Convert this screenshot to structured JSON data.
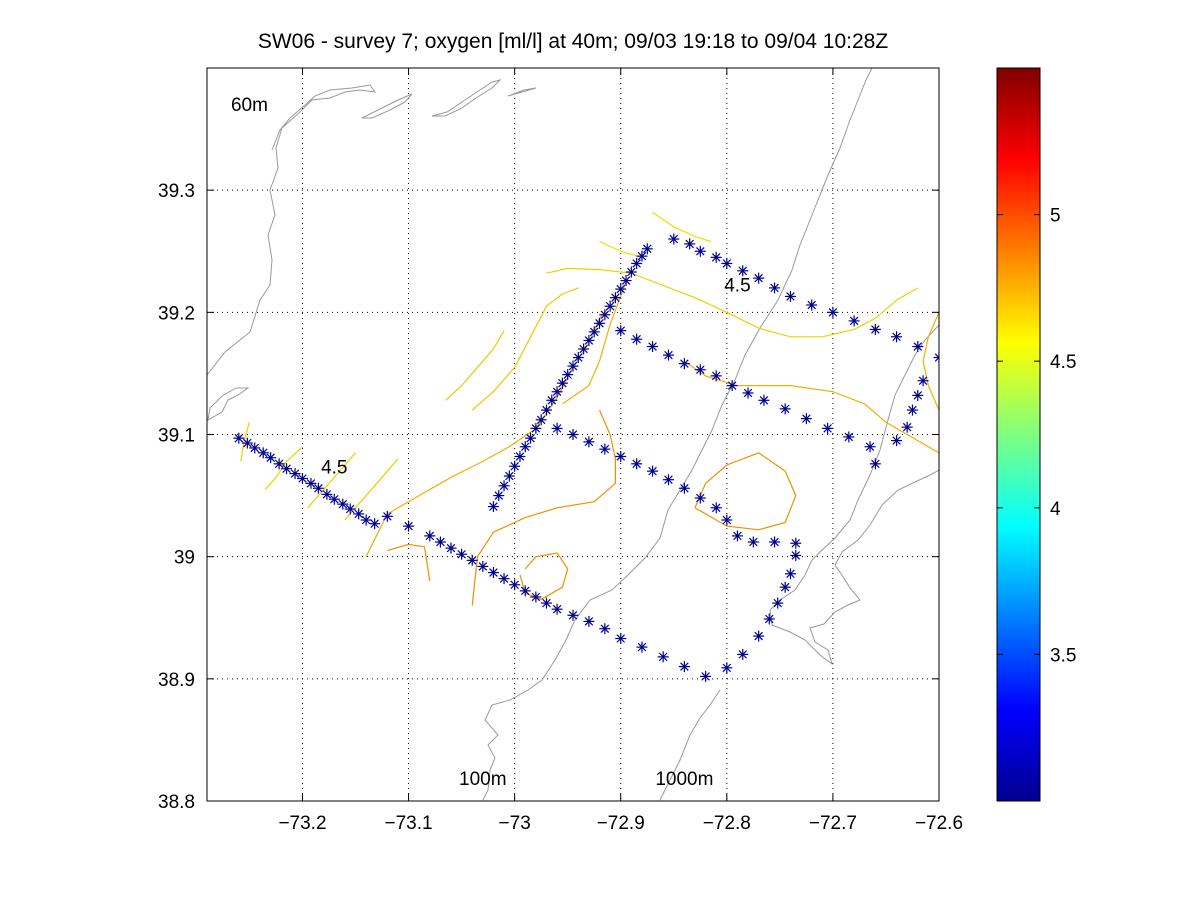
{
  "chart_data": {
    "type": "scatter",
    "title": "SW06 - survey 7; oxygen [ml/l] at 40m; 09/03 19:18 to 09/04 10:28Z",
    "xlabel": "",
    "ylabel": "",
    "xlim": [
      -73.29,
      -72.6
    ],
    "ylim": [
      38.8,
      39.4
    ],
    "xticks": [
      -73.2,
      -73.1,
      -73.0,
      -72.9,
      -72.8,
      -72.7,
      -72.6
    ],
    "xtick_labels": [
      "−73.2",
      "−73.1",
      "−73",
      "−72.9",
      "−72.8",
      "−72.7",
      "−72.6"
    ],
    "yticks": [
      38.8,
      38.9,
      39.0,
      39.1,
      39.2,
      39.3
    ],
    "ytick_labels": [
      "38.8",
      "38.9",
      "39",
      "39.1",
      "39.2",
      "39.3"
    ],
    "grid": true,
    "marker_color": "#00008f",
    "colorbar": {
      "range": [
        3.0,
        5.5
      ],
      "ticks": [
        3.5,
        4.0,
        4.5,
        5.0
      ],
      "tick_labels": [
        "3.5",
        "4",
        "4.5",
        "5"
      ],
      "colormap": "jet"
    },
    "annotations": [
      {
        "text": "60m",
        "x": -73.25,
        "y": 39.365
      },
      {
        "text": "100m",
        "x": -73.03,
        "y": 38.813
      },
      {
        "text": "1000m",
        "x": -72.84,
        "y": 38.813
      },
      {
        "text": "4.5",
        "x": -72.79,
        "y": 39.217
      },
      {
        "text": "4.5",
        "x": -73.17,
        "y": 39.068
      }
    ],
    "stations": [
      [
        -73.26,
        39.097
      ],
      [
        -73.252,
        39.093
      ],
      [
        -73.245,
        39.089
      ],
      [
        -73.237,
        39.085
      ],
      [
        -73.23,
        39.081
      ],
      [
        -73.222,
        39.076
      ],
      [
        -73.215,
        39.072
      ],
      [
        -73.207,
        39.068
      ],
      [
        -73.2,
        39.064
      ],
      [
        -73.192,
        39.06
      ],
      [
        -73.185,
        39.056
      ],
      [
        -73.177,
        39.051
      ],
      [
        -73.17,
        39.047
      ],
      [
        -73.162,
        39.043
      ],
      [
        -73.155,
        39.039
      ],
      [
        -73.147,
        39.035
      ],
      [
        -73.14,
        39.03
      ],
      [
        -73.132,
        39.027
      ],
      [
        -73.12,
        39.033
      ],
      [
        -73.1,
        39.025
      ],
      [
        -73.08,
        39.017
      ],
      [
        -73.07,
        39.012
      ],
      [
        -73.06,
        39.007
      ],
      [
        -73.05,
        39.002
      ],
      [
        -73.04,
        38.997
      ],
      [
        -73.03,
        38.992
      ],
      [
        -73.02,
        38.987
      ],
      [
        -73.01,
        38.982
      ],
      [
        -73.0,
        38.977
      ],
      [
        -72.99,
        38.972
      ],
      [
        -72.98,
        38.967
      ],
      [
        -72.97,
        38.962
      ],
      [
        -72.96,
        38.957
      ],
      [
        -72.945,
        38.952
      ],
      [
        -72.93,
        38.947
      ],
      [
        -72.915,
        38.941
      ],
      [
        -72.9,
        38.933
      ],
      [
        -72.88,
        38.926
      ],
      [
        -72.86,
        38.918
      ],
      [
        -72.84,
        38.91
      ],
      [
        -72.82,
        38.902
      ],
      [
        -72.8,
        38.909
      ],
      [
        -72.785,
        38.92
      ],
      [
        -72.77,
        38.935
      ],
      [
        -72.76,
        38.949
      ],
      [
        -72.752,
        38.962
      ],
      [
        -72.745,
        38.975
      ],
      [
        -72.74,
        38.986
      ],
      [
        -72.735,
        39.001
      ],
      [
        -73.02,
        39.041
      ],
      [
        -73.015,
        39.05
      ],
      [
        -73.01,
        39.058
      ],
      [
        -73.005,
        39.066
      ],
      [
        -73.0,
        39.074
      ],
      [
        -72.995,
        39.082
      ],
      [
        -72.99,
        39.09
      ],
      [
        -72.985,
        39.097
      ],
      [
        -72.98,
        39.105
      ],
      [
        -72.975,
        39.112
      ],
      [
        -72.97,
        39.12
      ],
      [
        -72.965,
        39.128
      ],
      [
        -72.96,
        39.135
      ],
      [
        -72.955,
        39.142
      ],
      [
        -72.95,
        39.149
      ],
      [
        -72.945,
        39.156
      ],
      [
        -72.94,
        39.163
      ],
      [
        -72.935,
        39.17
      ],
      [
        -72.93,
        39.177
      ],
      [
        -72.925,
        39.184
      ],
      [
        -72.92,
        39.191
      ],
      [
        -72.915,
        39.198
      ],
      [
        -72.91,
        39.205
      ],
      [
        -72.905,
        39.212
      ],
      [
        -72.9,
        39.219
      ],
      [
        -72.895,
        39.226
      ],
      [
        -72.89,
        39.233
      ],
      [
        -72.885,
        39.24
      ],
      [
        -72.88,
        39.246
      ],
      [
        -72.875,
        39.252
      ],
      [
        -72.85,
        39.26
      ],
      [
        -72.835,
        39.256
      ],
      [
        -72.825,
        39.25
      ],
      [
        -72.81,
        39.245
      ],
      [
        -72.8,
        39.24
      ],
      [
        -72.785,
        39.234
      ],
      [
        -72.77,
        39.228
      ],
      [
        -72.755,
        39.22
      ],
      [
        -72.74,
        39.213
      ],
      [
        -72.72,
        39.206
      ],
      [
        -72.7,
        39.2
      ],
      [
        -72.68,
        39.193
      ],
      [
        -72.66,
        39.186
      ],
      [
        -72.64,
        39.18
      ],
      [
        -72.62,
        39.172
      ],
      [
        -72.6,
        39.163
      ],
      [
        -72.615,
        39.144
      ],
      [
        -72.62,
        39.132
      ],
      [
        -72.625,
        39.12
      ],
      [
        -72.63,
        39.106
      ],
      [
        -72.64,
        39.095
      ],
      [
        -72.66,
        39.076
      ],
      [
        -72.9,
        39.185
      ],
      [
        -72.885,
        39.178
      ],
      [
        -72.87,
        39.172
      ],
      [
        -72.855,
        39.165
      ],
      [
        -72.84,
        39.158
      ],
      [
        -72.825,
        39.153
      ],
      [
        -72.81,
        39.148
      ],
      [
        -72.795,
        39.14
      ],
      [
        -72.78,
        39.134
      ],
      [
        -72.765,
        39.128
      ],
      [
        -72.745,
        39.121
      ],
      [
        -72.725,
        39.113
      ],
      [
        -72.705,
        39.105
      ],
      [
        -72.685,
        39.098
      ],
      [
        -72.665,
        39.09
      ],
      [
        -72.96,
        39.105
      ],
      [
        -72.945,
        39.1
      ],
      [
        -72.93,
        39.094
      ],
      [
        -72.915,
        39.088
      ],
      [
        -72.9,
        39.082
      ],
      [
        -72.885,
        39.076
      ],
      [
        -72.87,
        39.07
      ],
      [
        -72.855,
        39.063
      ],
      [
        -72.84,
        39.056
      ],
      [
        -72.825,
        39.048
      ],
      [
        -72.81,
        39.04
      ],
      [
        -72.8,
        39.03
      ],
      [
        -72.79,
        39.017
      ],
      [
        -72.775,
        39.012
      ],
      [
        -72.755,
        39.012
      ],
      [
        -72.735,
        39.011
      ]
    ],
    "contours": [
      {
        "level": 4.5,
        "color": "#f0e000",
        "points": [
          [
            -72.87,
            39.282
          ],
          [
            -72.85,
            39.27
          ],
          [
            -72.83,
            39.262
          ],
          [
            -72.815,
            39.258
          ]
        ]
      },
      {
        "level": 4.5,
        "color": "#f0e000",
        "points": [
          [
            -72.92,
            39.258
          ],
          [
            -72.9,
            39.25
          ],
          [
            -72.88,
            39.245
          ]
        ]
      },
      {
        "level": 4.5,
        "color": "#f0d000",
        "points": [
          [
            -72.97,
            39.232
          ],
          [
            -72.95,
            39.236
          ],
          [
            -72.92,
            39.235
          ],
          [
            -72.89,
            39.232
          ],
          [
            -72.86,
            39.222
          ],
          [
            -72.83,
            39.212
          ],
          [
            -72.8,
            39.2
          ],
          [
            -72.77,
            39.187
          ],
          [
            -72.74,
            39.18
          ],
          [
            -72.71,
            39.18
          ],
          [
            -72.68,
            39.186
          ],
          [
            -72.66,
            39.195
          ],
          [
            -72.64,
            39.21
          ],
          [
            -72.62,
            39.22
          ]
        ]
      },
      {
        "level": 4.5,
        "color": "#f0d000",
        "points": [
          [
            -73.25,
            39.11
          ],
          [
            -73.255,
            39.095
          ],
          [
            -73.258,
            39.078
          ]
        ]
      },
      {
        "level": 4.5,
        "color": "#f0d000",
        "points": [
          [
            -73.2,
            39.09
          ],
          [
            -73.215,
            39.078
          ],
          [
            -73.225,
            39.065
          ],
          [
            -73.235,
            39.055
          ]
        ]
      },
      {
        "level": 4.5,
        "color": "#f0d000",
        "points": [
          [
            -73.15,
            39.085
          ],
          [
            -73.165,
            39.07
          ],
          [
            -73.18,
            39.055
          ],
          [
            -73.195,
            39.04
          ]
        ]
      },
      {
        "level": 4.5,
        "color": "#f0c800",
        "points": [
          [
            -73.11,
            39.08
          ],
          [
            -73.125,
            39.065
          ],
          [
            -73.14,
            39.05
          ],
          [
            -73.16,
            39.03
          ]
        ]
      },
      {
        "level": 4.5,
        "color": "#f0c800",
        "points": [
          [
            -73.01,
            39.185
          ],
          [
            -73.02,
            39.17
          ],
          [
            -73.035,
            39.155
          ],
          [
            -73.05,
            39.14
          ],
          [
            -73.065,
            39.128
          ]
        ]
      },
      {
        "level": 4.5,
        "color": "#f0c800",
        "points": [
          [
            -72.94,
            39.22
          ],
          [
            -72.955,
            39.215
          ],
          [
            -72.97,
            39.205
          ],
          [
            -72.985,
            39.18
          ],
          [
            -73.0,
            39.155
          ],
          [
            -73.02,
            39.135
          ],
          [
            -73.04,
            39.12
          ]
        ]
      },
      {
        "level": 4.4,
        "color": "#f0b000",
        "points": [
          [
            -72.905,
            39.21
          ],
          [
            -72.92,
            39.195
          ],
          [
            -72.93,
            39.175
          ],
          [
            -72.945,
            39.155
          ],
          [
            -72.96,
            39.13
          ],
          [
            -72.98,
            39.105
          ],
          [
            -73.005,
            39.09
          ],
          [
            -73.03,
            39.078
          ],
          [
            -73.06,
            39.065
          ],
          [
            -73.09,
            39.05
          ],
          [
            -73.12,
            39.035
          ],
          [
            -73.14,
            39.0
          ]
        ]
      },
      {
        "level": 4.4,
        "color": "#f0b000",
        "points": [
          [
            -72.895,
            39.225
          ],
          [
            -72.91,
            39.19
          ],
          [
            -72.92,
            39.16
          ],
          [
            -72.93,
            39.14
          ],
          [
            -72.955,
            39.125
          ]
        ]
      },
      {
        "level": 4.4,
        "color": "#f0b000",
        "points": [
          [
            -72.84,
            39.16
          ],
          [
            -72.82,
            39.148
          ],
          [
            -72.79,
            39.14
          ],
          [
            -72.74,
            39.14
          ],
          [
            -72.7,
            39.135
          ],
          [
            -72.67,
            39.125
          ],
          [
            -72.65,
            39.11
          ],
          [
            -72.62,
            39.095
          ],
          [
            -72.6,
            39.085
          ]
        ]
      },
      {
        "level": 4.4,
        "color": "#f0b000",
        "points": [
          [
            -72.6,
            39.2
          ],
          [
            -72.61,
            39.18
          ],
          [
            -72.615,
            39.16
          ],
          [
            -72.61,
            39.14
          ],
          [
            -72.6,
            39.12
          ]
        ]
      },
      {
        "level": 4.3,
        "color": "#f09000",
        "points": [
          [
            -72.92,
            39.12
          ],
          [
            -72.91,
            39.1
          ],
          [
            -72.905,
            39.08
          ],
          [
            -72.905,
            39.06
          ],
          [
            -72.925,
            39.045
          ],
          [
            -72.96,
            39.04
          ],
          [
            -72.99,
            39.032
          ],
          [
            -73.02,
            39.02
          ],
          [
            -73.035,
            39.0
          ],
          [
            -73.04,
            38.96
          ]
        ]
      },
      {
        "level": 4.3,
        "color": "#f09000",
        "points": [
          [
            -72.99,
            38.99
          ],
          [
            -72.98,
            39.0
          ],
          [
            -72.96,
            39.003
          ],
          [
            -72.95,
            38.99
          ],
          [
            -72.955,
            38.975
          ],
          [
            -72.975,
            38.965
          ],
          [
            -72.99,
            38.97
          ],
          [
            -72.995,
            38.985
          ]
        ]
      },
      {
        "level": 4.3,
        "color": "#f09000",
        "points": [
          [
            -72.83,
            39.04
          ],
          [
            -72.8,
            39.025
          ],
          [
            -72.77,
            39.022
          ],
          [
            -72.745,
            39.028
          ],
          [
            -72.735,
            39.05
          ],
          [
            -72.745,
            39.07
          ],
          [
            -72.77,
            39.085
          ],
          [
            -72.8,
            39.075
          ],
          [
            -72.82,
            39.06
          ],
          [
            -72.83,
            39.04
          ]
        ]
      },
      {
        "level": 4.3,
        "color": "#f09000",
        "points": [
          [
            -73.12,
            39.005
          ],
          [
            -73.1,
            39.01
          ],
          [
            -73.085,
            39.008
          ],
          [
            -73.08,
            38.98
          ]
        ]
      }
    ]
  }
}
